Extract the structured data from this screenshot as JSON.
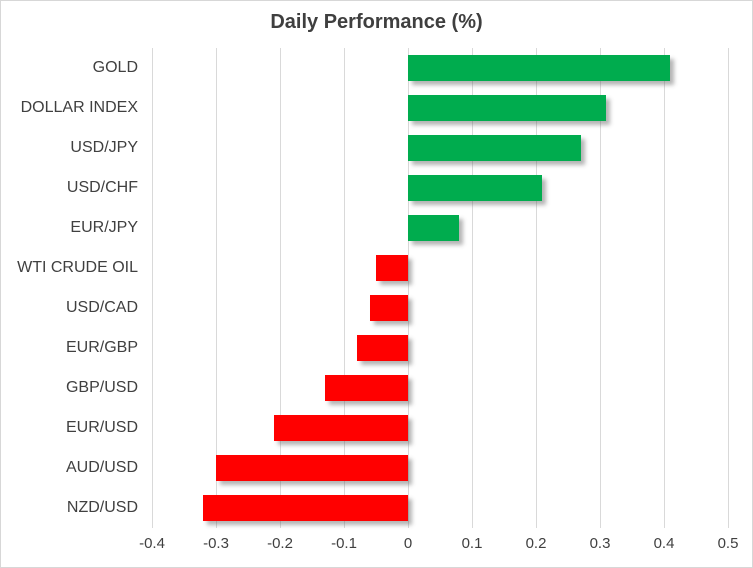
{
  "chart_data": {
    "type": "bar",
    "orientation": "horizontal",
    "title": "Daily Performance (%)",
    "xlabel": "",
    "ylabel": "",
    "categories": [
      "GOLD",
      "DOLLAR INDEX",
      "USD/JPY",
      "USD/CHF",
      "EUR/JPY",
      "WTI CRUDE OIL",
      "USD/CAD",
      "EUR/GBP",
      "GBP/USD",
      "EUR/USD",
      "AUD/USD",
      "NZD/USD"
    ],
    "values": [
      0.41,
      0.31,
      0.27,
      0.21,
      0.08,
      -0.05,
      -0.06,
      -0.08,
      -0.13,
      -0.21,
      -0.3,
      -0.32
    ],
    "xlim": [
      -0.4,
      0.5
    ],
    "xticks": [
      -0.4,
      -0.3,
      -0.2,
      -0.1,
      0,
      0.1,
      0.2,
      0.3,
      0.4,
      0.5
    ],
    "xtick_labels": [
      "-0.4",
      "-0.3",
      "-0.2",
      "-0.1",
      "0",
      "0.1",
      "0.2",
      "0.3",
      "0.4",
      "0.5"
    ],
    "grid": true,
    "legend": "none",
    "positive_color": "#00AC4E",
    "negative_color": "#FF0000",
    "gridline_color": "#D9D9D9",
    "text_color": "#404040",
    "frame_border_color": "#D7D7D7"
  }
}
